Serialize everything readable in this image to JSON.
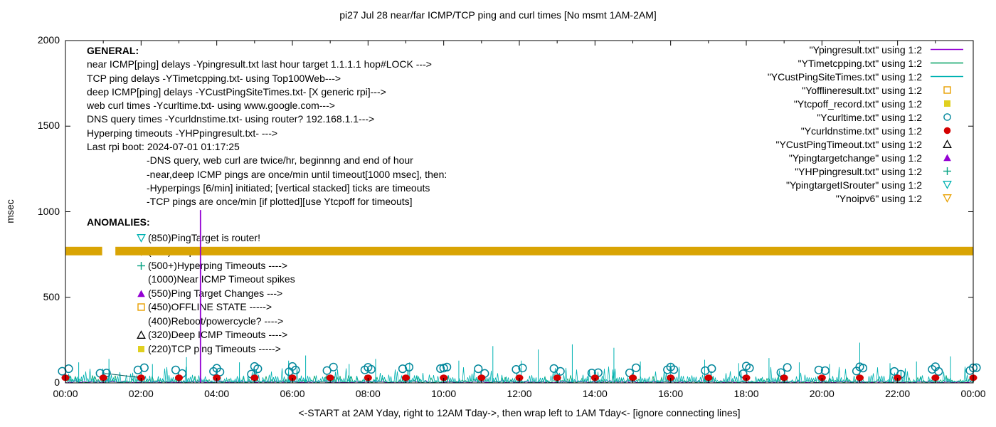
{
  "title": "pi27 Jul 28  near/far ICMP/TCP ping and curl times [No msmt 1AM-2AM]",
  "axes": {
    "ylabel": "msec",
    "xlabel": "<-START at 2AM Yday, right to 12AM Tday->, then wrap left to 1AM Tday<- [ignore connecting lines]",
    "yticks": [
      "0",
      "500",
      "1000",
      "1500",
      "2000"
    ],
    "xticks": [
      "00:00",
      "02:00",
      "04:00",
      "06:00",
      "08:00",
      "10:00",
      "12:00",
      "14:00",
      "16:00",
      "18:00",
      "20:00",
      "22:00",
      "00:00"
    ]
  },
  "legend": [
    {
      "label": "\"Ypingresult.txt\" using 1:2",
      "type": "line",
      "color": "#9400d3"
    },
    {
      "label": "\"YTimetcpping.txt\" using 1:2",
      "type": "line",
      "color": "#00a060"
    },
    {
      "label": "\"YCustPingSiteTimes.txt\" using 1:2",
      "type": "line",
      "color": "#00b2b2"
    },
    {
      "label": "\"Yofflineresult.txt\" using 1:2",
      "type": "square-open",
      "color": "#e8a000"
    },
    {
      "label": "\"Ytcpoff_record.txt\" using 1:2",
      "type": "square-filled",
      "color": "#e0d020"
    },
    {
      "label": "\"Ycurltime.txt\" using 1:2",
      "type": "circle-open",
      "color": "#00869b"
    },
    {
      "label": "\"Ycurldnstime.txt\" using 1:2",
      "type": "circle-filled",
      "color": "#d40000"
    },
    {
      "label": "\"YCustPingTimeout.txt\" using 1:2",
      "type": "triangle-up-open",
      "color": "#000000"
    },
    {
      "label": "\"Ypingtargetchange\" using 1:2",
      "type": "triangle-up-filled",
      "color": "#9400d3"
    },
    {
      "label": "\"YHPpingresult.txt\" using 1:2",
      "type": "plus",
      "color": "#00a080"
    },
    {
      "label": "\"YpingtargetISrouter\" using 1:2",
      "type": "triangle-down-open",
      "color": "#00b2b2"
    },
    {
      "label": "\"Ynoipv6\" using 1:2",
      "type": "triangle-down-open",
      "color": "#e8a000"
    }
  ],
  "general": {
    "heading": "GENERAL:",
    "lines": [
      {
        "text": "near ICMP[ping] delays -Ypingresult.txt last hour target 1.1.1.1 hop#LOCK --->",
        "indent": false
      },
      {
        "text": "TCP ping delays -YTimetcpping.txt- using Top100Web--->",
        "indent": false
      },
      {
        "text": "deep ICMP[ping] delays -YCustPingSiteTimes.txt- [X generic rpi]--->",
        "indent": false
      },
      {
        "text": "web curl times -Ycurltime.txt- using www.google.com--->",
        "indent": false
      },
      {
        "text": "DNS query times -Ycurldnstime.txt- using router? 192.168.1.1--->",
        "indent": false
      },
      {
        "text": "Hyperping timeouts -YHPpingresult.txt- --->",
        "indent": false
      },
      {
        "text": "Last rpi boot: 2024-07-01 01:17:25",
        "indent": false
      },
      {
        "text": "-DNS query, web curl are twice/hr, beginnng and end of hour",
        "indent": true
      },
      {
        "text": "-near,deep ICMP pings are once/min until timeout[1000 msec], then:",
        "indent": true
      },
      {
        "text": "-Hyperpings [6/min] initiated; [vertical stacked] ticks are timeouts",
        "indent": true
      },
      {
        "text": "-TCP pings are once/min [if plotted][use Ytcpoff for timeouts]",
        "indent": true
      }
    ]
  },
  "anomalies": {
    "heading": "ANOMALIES:",
    "rows": [
      {
        "marker": "triangle-down-open",
        "color": "#00b2b2",
        "text": "(850)PingTarget is router!"
      },
      {
        "marker": "triangle-down-open",
        "color": "#e8a000",
        "text": "(770)No ipv6 ---->"
      },
      {
        "marker": "plus",
        "color": "#00a080",
        "text": "(500+)Hyperping Timeouts ---->"
      },
      {
        "marker": "none",
        "color": "",
        "text": "(1000)Near ICMP Timeout spikes"
      },
      {
        "marker": "triangle-up-filled",
        "color": "#9400d3",
        "text": "(550)Ping Target Changes --->"
      },
      {
        "marker": "square-open",
        "color": "#e8a000",
        "text": "(450)OFFLINE STATE ----->"
      },
      {
        "marker": "none",
        "color": "",
        "text": "(400)Reboot/powercycle? ---->"
      },
      {
        "marker": "triangle-up-open",
        "color": "#000000",
        "text": "(320)Deep ICMP Timeouts ---->"
      },
      {
        "marker": "square-filled",
        "color": "#e0d020",
        "text": "(220)TCP ping Timeouts ----->"
      }
    ]
  },
  "chart_data": {
    "type": "line",
    "title": "pi27 Jul 28  near/far ICMP/TCP ping and curl times [No msmt 1AM-2AM]",
    "xlabel": "<-START at 2AM Yday, right to 12AM Tday->, then wrap left to 1AM Tday<- [ignore connecting lines]",
    "ylabel": "msec",
    "xlim": [
      0,
      24
    ],
    "ylim": [
      0,
      2000
    ],
    "xtick_hours": [
      0,
      2,
      4,
      6,
      8,
      10,
      12,
      14,
      16,
      18,
      20,
      22,
      24
    ],
    "ytick_values": [
      0,
      500,
      1000,
      1500,
      2000
    ],
    "grid": false,
    "legend_position": "top-right",
    "series_notes": "near/deep ICMP, TCP ping and curl traces jitter between 0 and ~100 msec across all 24h; one near-ICMP timeout spike to ~1000 msec at ~03:35",
    "dns_dots": {
      "y": 30,
      "hour_step": 1,
      "color": "#d40000"
    },
    "curl_circles": {
      "y_min": 50,
      "y_max": 95,
      "per_hour": 2,
      "color": "#00869b"
    },
    "noipv6_band": {
      "y": 770,
      "segments": [
        [
          0,
          0.97
        ],
        [
          1.32,
          24
        ]
      ],
      "color": "#d9a404"
    },
    "near_icmp_timeout_spike": {
      "x": 3.57,
      "y": 1010,
      "color": "#9400d3"
    },
    "connector_line": {
      "from": [
        1.05,
        55
      ],
      "to": [
        2.1,
        28
      ],
      "color": "#005f5f"
    },
    "tall_spikes": [
      [
        0.35,
        120
      ],
      [
        1.15,
        140
      ],
      [
        2.3,
        110
      ],
      [
        3.2,
        150
      ],
      [
        4.6,
        120
      ],
      [
        5.9,
        130
      ],
      [
        6.35,
        160
      ],
      [
        7.5,
        110
      ],
      [
        8.2,
        140
      ],
      [
        9.1,
        120
      ],
      [
        10.4,
        130
      ],
      [
        11.3,
        215
      ],
      [
        12.05,
        130
      ],
      [
        12.5,
        195
      ],
      [
        13.4,
        225
      ],
      [
        14.5,
        205
      ],
      [
        15.2,
        125
      ],
      [
        16.0,
        110
      ],
      [
        16.9,
        135
      ],
      [
        17.8,
        115
      ],
      [
        18.6,
        145
      ],
      [
        19.4,
        120
      ],
      [
        20.2,
        110
      ],
      [
        21.0,
        235
      ],
      [
        21.8,
        115
      ],
      [
        22.5,
        125
      ],
      [
        23.4,
        155
      ]
    ],
    "baseline_noise": {
      "teal_max": 95,
      "green_max": 45,
      "purple_max": 16,
      "seed": 42
    }
  }
}
